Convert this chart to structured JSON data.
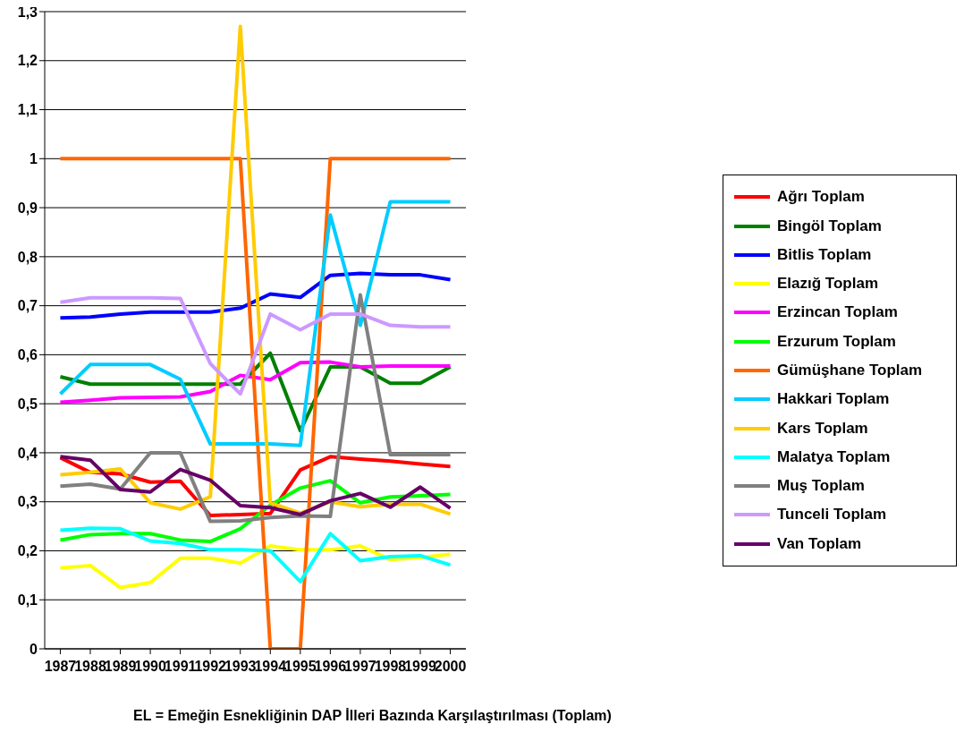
{
  "chart_data": {
    "type": "line",
    "xlabel": "EL = Emeğin Esnekliğinin DAP İlleri Bazında Karşılaştırılması (Toplam)",
    "categories": [
      "1987",
      "1988",
      "1989",
      "1990",
      "1991",
      "1992",
      "1993",
      "1994",
      "1995",
      "1996",
      "1997",
      "1998",
      "1999",
      "2000"
    ],
    "ylim": [
      0,
      1.3
    ],
    "yticks": [
      {
        "value": 0,
        "label": "0"
      },
      {
        "value": 0.1,
        "label": "0,1"
      },
      {
        "value": 0.2,
        "label": "0,2"
      },
      {
        "value": 0.3,
        "label": "0,3"
      },
      {
        "value": 0.4,
        "label": "0,4"
      },
      {
        "value": 0.5,
        "label": "0,5"
      },
      {
        "value": 0.6,
        "label": "0,6"
      },
      {
        "value": 0.7,
        "label": "0,7"
      },
      {
        "value": 0.8,
        "label": "0,8"
      },
      {
        "value": 0.9,
        "label": "0,9"
      },
      {
        "value": 1,
        "label": "1"
      },
      {
        "value": 1.1,
        "label": "1,1"
      },
      {
        "value": 1.2,
        "label": "1,2"
      },
      {
        "value": 1.3,
        "label": "1,3"
      }
    ],
    "grid": "y",
    "legend": "right",
    "marker": "none",
    "line_style": "solid",
    "series": [
      {
        "name": "Ağrı Toplam",
        "color": "#ff0000",
        "values": [
          0.39,
          0.36,
          0.357,
          0.34,
          0.342,
          0.272,
          0.274,
          0.276,
          0.365,
          0.392,
          0.387,
          0.383,
          0.377,
          0.372
        ]
      },
      {
        "name": "Bingöl Toplam",
        "color": "#008000",
        "values": [
          0.555,
          0.54,
          0.54,
          0.54,
          0.54,
          0.54,
          0.54,
          0.603,
          0.445,
          0.575,
          0.575,
          0.542,
          0.542,
          0.575
        ]
      },
      {
        "name": "Bitlis Toplam",
        "color": "#0000ff",
        "values": [
          0.675,
          0.677,
          0.683,
          0.687,
          0.687,
          0.687,
          0.695,
          0.724,
          0.717,
          0.762,
          0.766,
          0.763,
          0.763,
          0.753
        ]
      },
      {
        "name": "Elazığ Toplam",
        "color": "#ffff00",
        "values": [
          0.165,
          0.17,
          0.125,
          0.135,
          0.185,
          0.185,
          0.175,
          0.21,
          0.202,
          0.202,
          0.21,
          0.182,
          0.186,
          0.193
        ]
      },
      {
        "name": "Erzincan Toplam",
        "color": "#ff00ff",
        "values": [
          0.503,
          0.507,
          0.512,
          0.513,
          0.514,
          0.525,
          0.558,
          0.549,
          0.584,
          0.585,
          0.575,
          0.577,
          0.577,
          0.577
        ]
      },
      {
        "name": "Erzurum Toplam",
        "color": "#00ff00",
        "values": [
          0.222,
          0.233,
          0.235,
          0.235,
          0.222,
          0.219,
          0.245,
          0.293,
          0.328,
          0.343,
          0.298,
          0.31,
          0.312,
          0.315
        ]
      },
      {
        "name": "Gümüşhane Toplam",
        "color": "#ff6600",
        "values": [
          1,
          1,
          1,
          1,
          1,
          1,
          1,
          0,
          0,
          1,
          1,
          1,
          1,
          1
        ]
      },
      {
        "name": "Hakkari Toplam",
        "color": "#00ccff",
        "values": [
          0.52,
          0.58,
          0.58,
          0.58,
          0.55,
          0.418,
          0.418,
          0.418,
          0.415,
          0.885,
          0.66,
          0.912,
          0.912,
          0.912
        ]
      },
      {
        "name": "Kars Toplam",
        "color": "#ffcc00",
        "values": [
          0.355,
          0.36,
          0.367,
          0.298,
          0.285,
          0.31,
          1.27,
          0.298,
          0.277,
          0.3,
          0.29,
          0.295,
          0.295,
          0.275
        ]
      },
      {
        "name": "Malatya Toplam",
        "color": "#00ffff",
        "values": [
          0.242,
          0.246,
          0.245,
          0.22,
          0.215,
          0.202,
          0.202,
          0.2,
          0.137,
          0.235,
          0.18,
          0.188,
          0.19,
          0.171
        ]
      },
      {
        "name": "Muş Toplam",
        "color": "#808080",
        "values": [
          0.332,
          0.336,
          0.326,
          0.4,
          0.4,
          0.26,
          0.261,
          0.268,
          0.271,
          0.27,
          0.722,
          0.396,
          0.396,
          0.396
        ]
      },
      {
        "name": "Tunceli Toplam",
        "color": "#cc99ff",
        "values": [
          0.707,
          0.716,
          0.716,
          0.716,
          0.715,
          0.582,
          0.52,
          0.683,
          0.651,
          0.683,
          0.683,
          0.66,
          0.657,
          0.657
        ]
      },
      {
        "name": "Van Toplam",
        "color": "#660066",
        "values": [
          0.392,
          0.385,
          0.325,
          0.32,
          0.366,
          0.344,
          0.292,
          0.288,
          0.274,
          0.302,
          0.317,
          0.289,
          0.33,
          0.287
        ]
      }
    ]
  }
}
